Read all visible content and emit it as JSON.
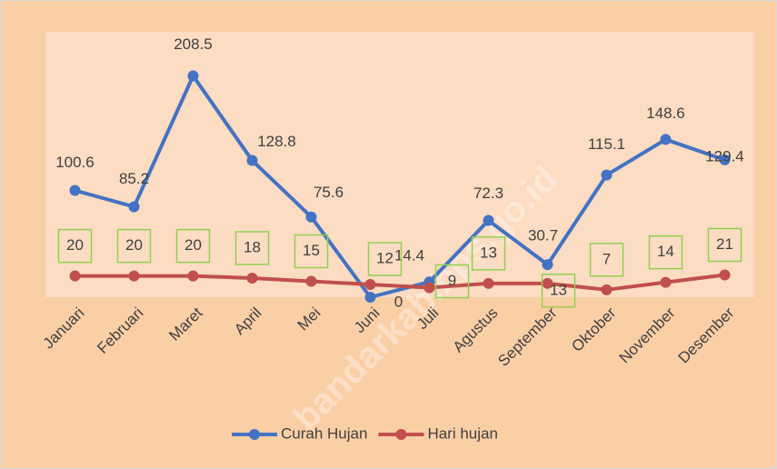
{
  "chart_data": {
    "type": "line",
    "categories": [
      "Januari",
      "Februari",
      "Maret",
      "April",
      "Mei",
      "Juni",
      "Juli",
      "Agustus",
      "September",
      "Oktober",
      "November",
      "Desember"
    ],
    "series": [
      {
        "name": "Curah Hujan",
        "color": "#4472c4",
        "values": [
          100.6,
          85.2,
          208.5,
          128.8,
          75.6,
          0,
          14.4,
          72.3,
          30.7,
          115.1,
          148.6,
          129.4
        ]
      },
      {
        "name": "Hari hujan",
        "color": "#c0504d",
        "values": [
          20,
          20,
          20,
          18,
          15,
          12,
          9,
          13,
          13,
          7,
          14,
          21
        ]
      }
    ],
    "ylim": [
      0,
      250
    ],
    "legend": "bottom",
    "watermark": "bandarkab.bps.go.id"
  }
}
